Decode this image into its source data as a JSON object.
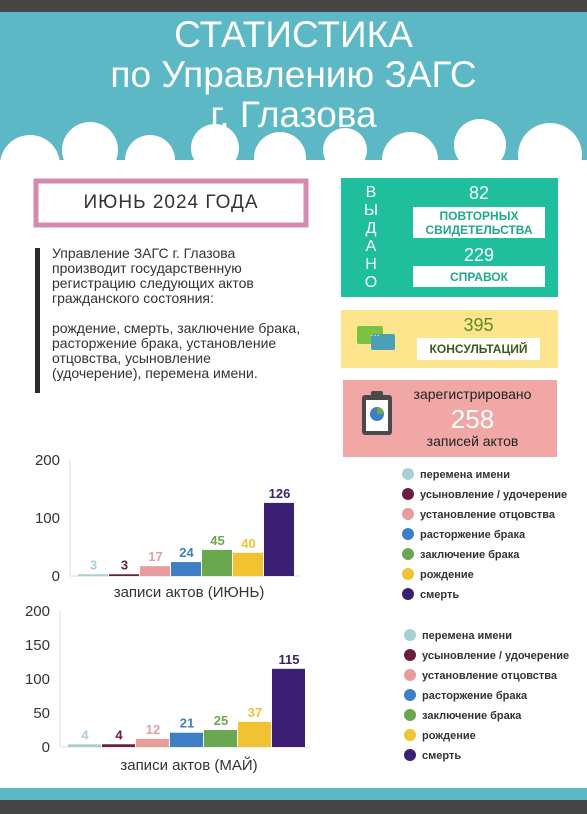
{
  "header": {
    "title": [
      "СТАТИСТИКА",
      "по Управлению ЗАГС",
      "г. Глазова"
    ]
  },
  "period": "ИЮНЬ 2024 ГОДА",
  "intro": [
    "Управление ЗАГС г. Глазова производит государственную регистрацию следующих актов гражданского состояния:",
    "рождение, смерть, заключение брака, расторжение брака, установление отцовства, усыновление (удочерение), перемена имени."
  ],
  "issued": {
    "label": "ВЫДАНО",
    "items": [
      {
        "value": 82,
        "label": "ПОВТОРНЫХ СВИДЕТЕЛЬСТВА"
      },
      {
        "value": 229,
        "label": "СПРАВОК"
      }
    ]
  },
  "consultations": {
    "value": 395,
    "label": "КОНСУЛЬТАЦИЙ"
  },
  "registered": {
    "prefix": "зарегистрировано",
    "value": 258,
    "label": "записей актов"
  },
  "chart_data": [
    {
      "type": "bar",
      "xlabel": "записи актов (ИЮНЬ)",
      "categories": [
        "перемена имени",
        "усыновление / удочерение",
        "установление отцовства",
        "расторжение брака",
        "заключение брака",
        "рождение",
        "смерть"
      ],
      "values": [
        3,
        3,
        17,
        24,
        45,
        40,
        126
      ],
      "colors": [
        "#a9cfd6",
        "#6b1d3f",
        "#e89c9c",
        "#3c7fc5",
        "#6aa84f",
        "#f1c232",
        "#3a1f72"
      ],
      "ylim": [
        0,
        200
      ],
      "yticks": [
        0,
        100,
        200
      ],
      "grid": false
    },
    {
      "type": "bar",
      "xlabel": "записи актов (МАЙ)",
      "categories": [
        "перемена имени",
        "усыновление / удочерение",
        "установление отцовства",
        "расторжение брака",
        "заключение брака",
        "рождение",
        "смерть"
      ],
      "values": [
        4,
        4,
        12,
        21,
        25,
        37,
        115
      ],
      "colors": [
        "#a9cfd6",
        "#6b1d3f",
        "#e89c9c",
        "#3c7fc5",
        "#6aa84f",
        "#f1c232",
        "#3a1f72"
      ],
      "ylim": [
        0,
        200
      ],
      "yticks": [
        0,
        50,
        100,
        150,
        200
      ],
      "grid": false
    }
  ]
}
